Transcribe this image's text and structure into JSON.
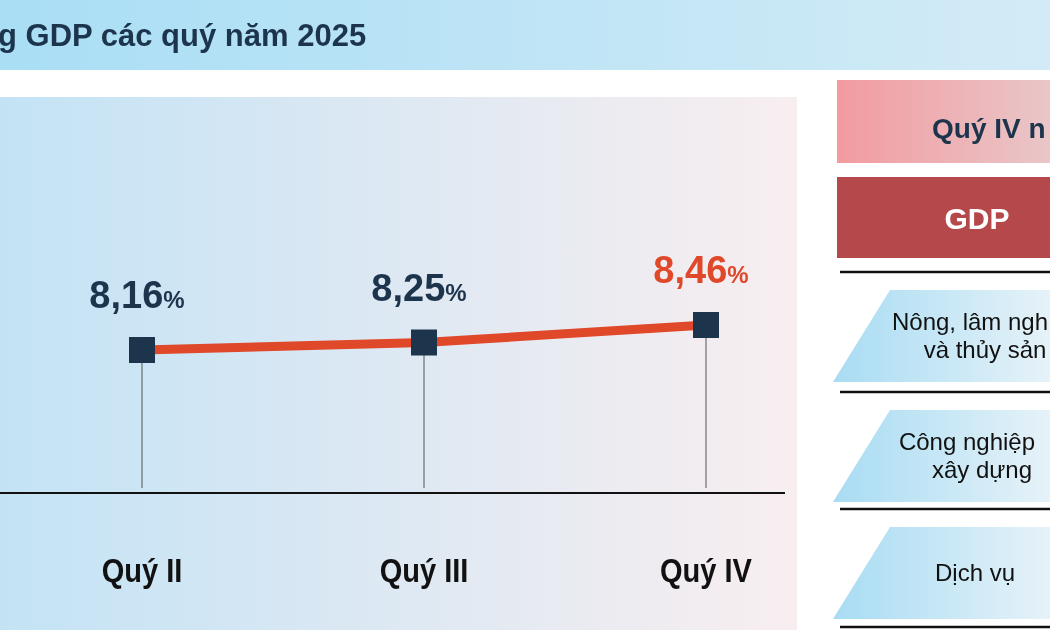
{
  "chart_data": {
    "type": "line",
    "title": "g GDP các quý năm 2025",
    "categories": [
      "Quý II",
      "Quý III",
      "Quý IV"
    ],
    "series": [
      {
        "color": "#e0482a",
        "values": [
          8.16,
          8.25,
          8.46
        ],
        "value_labels": [
          "8,16%",
          "8,25%",
          "8,46%"
        ]
      }
    ],
    "marker": "square",
    "annotations": [
      "Quý IV n",
      "GDP",
      "Nông, lâm ngh\nvà thủy sản",
      "Công nghiệp\nxây dựng",
      "Dịch vụ"
    ]
  }
}
